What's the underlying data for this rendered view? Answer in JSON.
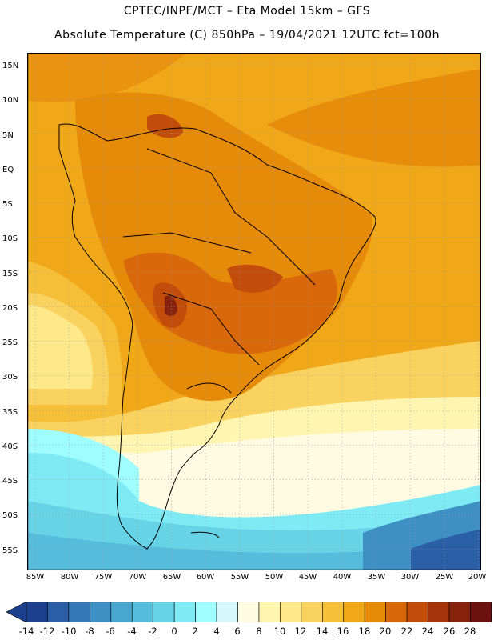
{
  "header": {
    "line1": "CPTEC/INPE/MCT –  Eta Model 15km – GFS",
    "line2": "Absolute Temperature (C) 850hPa – 19/04/2021 12UTC fct=100h"
  },
  "map": {
    "lat_labels": [
      "15N",
      "10N",
      "5N",
      "EQ",
      "5S",
      "10S",
      "15S",
      "20S",
      "25S",
      "30S",
      "35S",
      "40S",
      "45S",
      "50S",
      "55S"
    ],
    "lon_labels": [
      "85W",
      "80W",
      "75W",
      "70W",
      "65W",
      "60W",
      "55W",
      "50W",
      "45W",
      "40W",
      "35W",
      "30W",
      "25W",
      "20W"
    ]
  },
  "colorbar": {
    "labels": [
      "-14",
      "-12",
      "-10",
      "-8",
      "-6",
      "-4",
      "-2",
      "0",
      "2",
      "4",
      "6",
      "8",
      "10",
      "12",
      "14",
      "16",
      "18",
      "20",
      "22",
      "24",
      "26",
      "28"
    ],
    "colors": [
      "#1c3f8e",
      "#2a5ea7",
      "#3478b8",
      "#3d8fc4",
      "#48a6cf",
      "#55bddb",
      "#66d3e7",
      "#7eeaf4",
      "#9ffcff",
      "#d6f8fb",
      "#fffbe3",
      "#fff5b0",
      "#fde88a",
      "#f9d260",
      "#f5bf38",
      "#f0a818",
      "#e68a0a",
      "#d8680a",
      "#c24c0a",
      "#a5340b",
      "#87220d",
      "#6b120f"
    ],
    "min_arrow_color": "#1c3f8e",
    "max_arrow_color": "#6b120f"
  }
}
